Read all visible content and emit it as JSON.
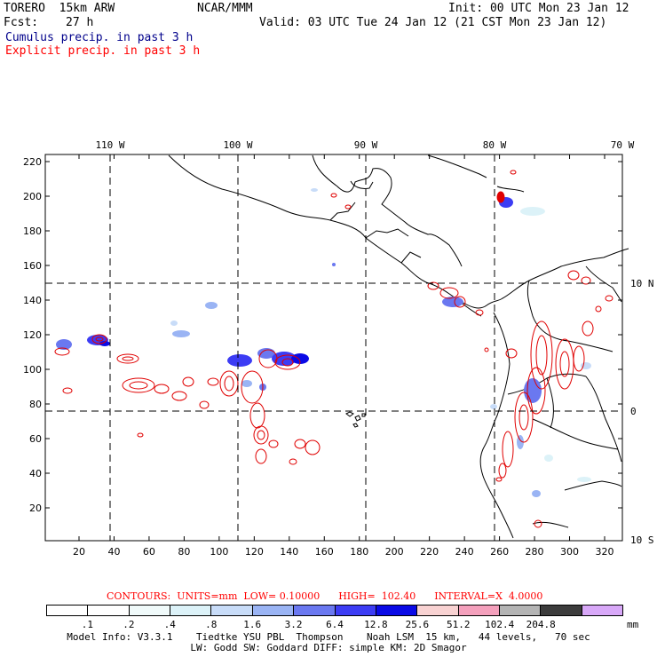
{
  "header": {
    "model": "TORERO  15km ARW",
    "org": "NCAR/MMM",
    "init": "Init: 00 UTC Mon 23 Jan 12",
    "fcst_label": "Fcst:",
    "fcst_value": "27 h",
    "valid": "Valid: 03 UTC Tue 24 Jan 12 (21 CST Mon 23 Jan 12)",
    "cumulus_label": "Cumulus precip. in past 3 h",
    "explicit_label": "Explicit precip. in past 3 h"
  },
  "map": {
    "lon_labels": [
      "110 W",
      "100 W",
      "90 W",
      "80 W",
      "70 W"
    ],
    "lat_labels": [
      "10 N",
      "0",
      "10 S"
    ],
    "y_ticks": [
      "220",
      "200",
      "180",
      "160",
      "140",
      "120",
      "100",
      "80",
      "60",
      "40",
      "20"
    ],
    "x_ticks": [
      "20",
      "40",
      "60",
      "80",
      "100",
      "120",
      "140",
      "160",
      "180",
      "200",
      "220",
      "240",
      "260",
      "280",
      "300",
      "320"
    ],
    "colors": {
      "cumulus": "#1e1eff",
      "explicit": "#e00000",
      "coast": "#000000",
      "grid": "#000000"
    }
  },
  "contours": {
    "text": "CONTOURS:  UNITS=mm  LOW= 0.10000      HIGH=  102.40      INTERVAL=X  4.0000"
  },
  "colorbar": {
    "colors": [
      "#ffffff",
      "#ffffff",
      "#f0fafa",
      "#dcf2f8",
      "#c8dcf8",
      "#9ab4f4",
      "#6a78f0",
      "#3c3cf4",
      "#0a0ae6",
      "#f8d2d2",
      "#f4a0bc",
      "#b4b4b4",
      "#3c3c3c",
      "#d8a8f8"
    ],
    "labels": [
      ".1",
      ".2",
      ".4",
      ".8",
      "1.6",
      "3.2",
      "6.4",
      "12.8",
      "25.6",
      "51.2",
      "102.4",
      "204.8"
    ],
    "unit": "mm"
  },
  "model_info": {
    "line1": "Model Info: V3.3.1    Tiedtke YSU PBL  Thompson    Noah LSM  15 km,   44 levels,   70 sec",
    "line2": "LW: Godd SW: Goddard DIFF: simple KM: 2D Smagor"
  }
}
